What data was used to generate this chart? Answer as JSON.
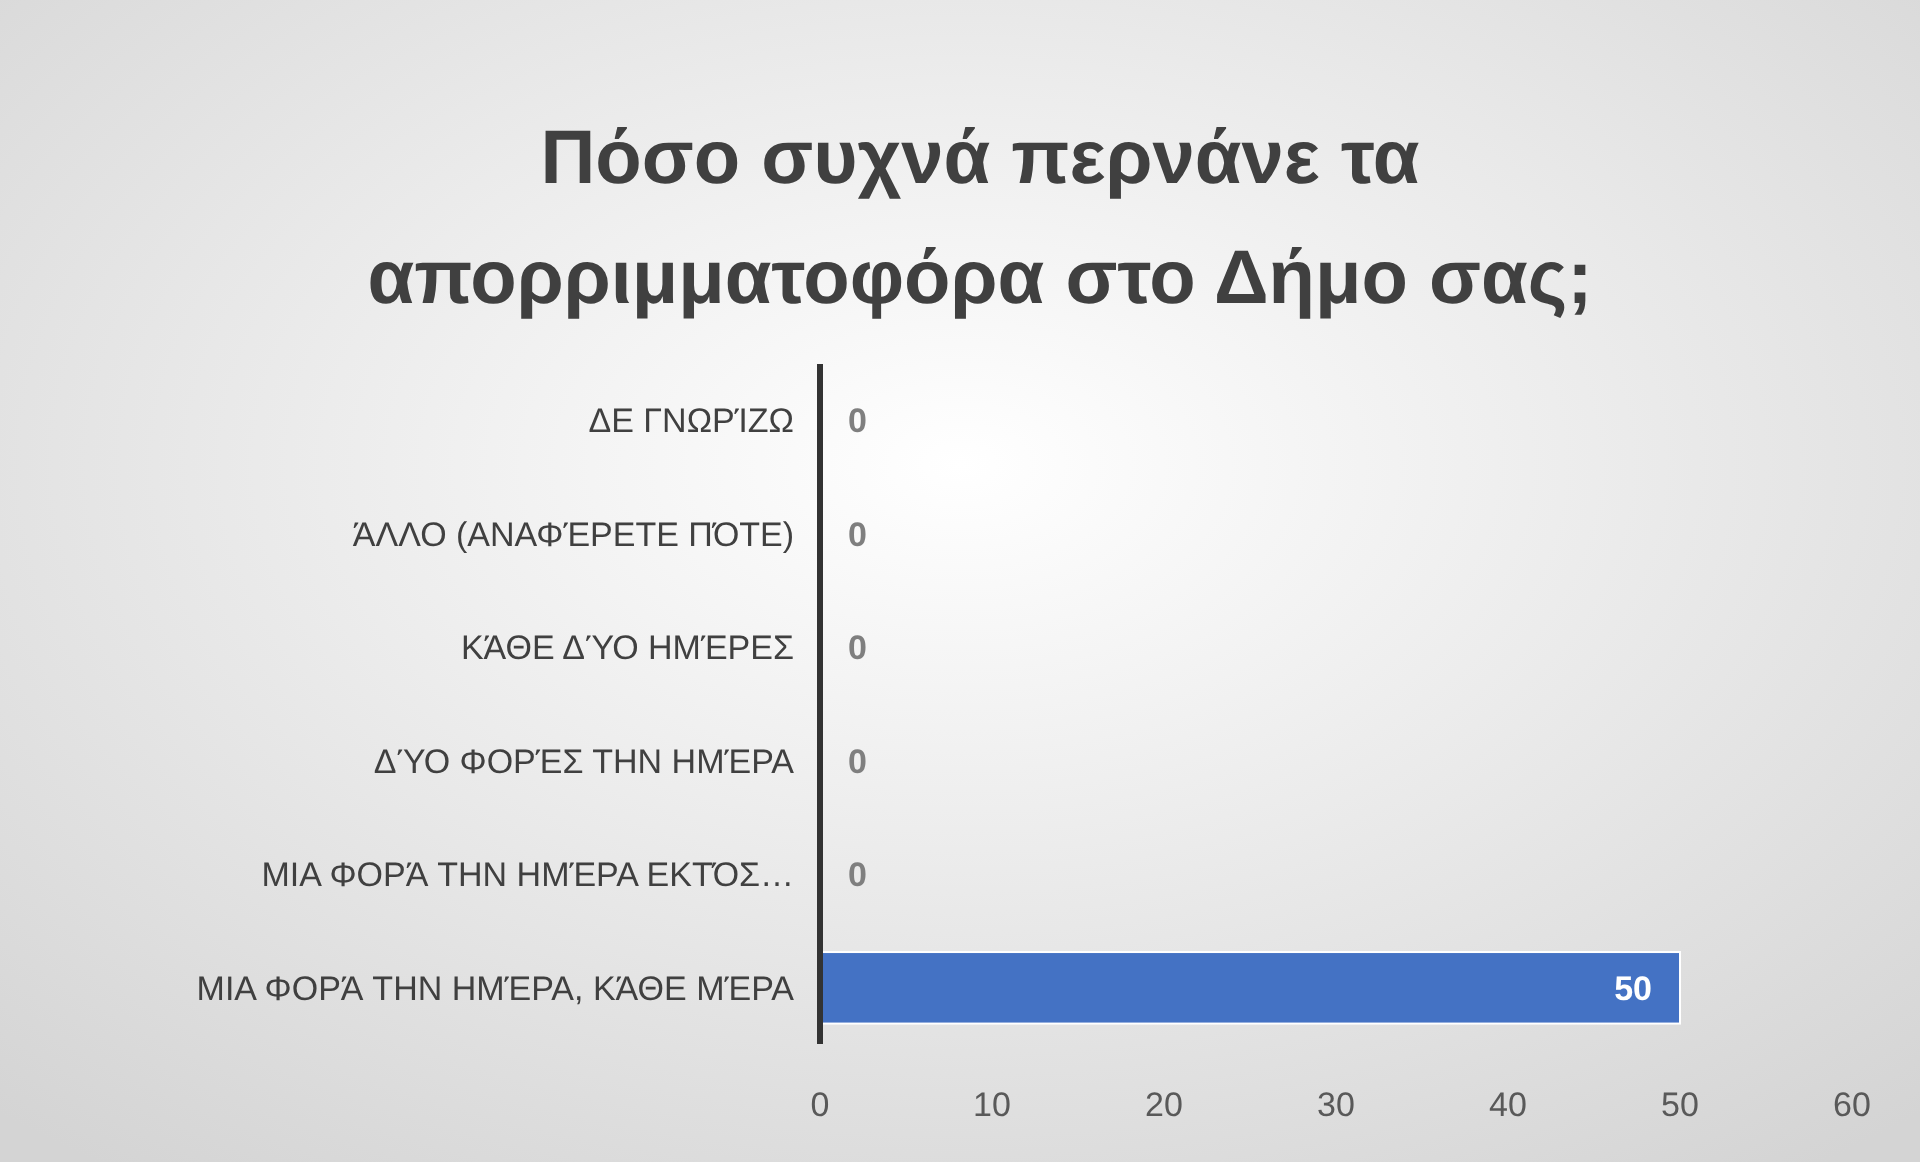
{
  "chart_data": {
    "type": "bar",
    "orientation": "horizontal",
    "title": "Πόσο συχνά περνάνε τα απορριμματοφόρα στο Δήμο σας;",
    "categories": [
      "ΔΕ ΓΝΩΡΊΖΩ",
      "ΆΛΛΟ (ΑΝΑΦΈΡΕΤΕ ΠΌΤΕ)",
      "ΚΆΘΕ ΔΎΟ ΗΜΈΡΕΣ",
      "ΔΎΟ ΦΟΡΈΣ ΤΗΝ ΗΜΈΡΑ",
      "ΜΙΑ ΦΟΡΆ ΤΗΝ ΗΜΈΡΑ ΕΚΤΌΣ…",
      "ΜΙΑ ΦΟΡΆ ΤΗΝ ΗΜΈΡΑ, ΚΆΘΕ ΜΈΡΑ"
    ],
    "values": [
      0,
      0,
      0,
      0,
      0,
      50
    ],
    "color": "#4472c4",
    "xlim": [
      0,
      60
    ],
    "xticks": [
      0,
      10,
      20,
      30,
      40,
      50,
      60
    ],
    "grid": false,
    "data_labels": true
  }
}
